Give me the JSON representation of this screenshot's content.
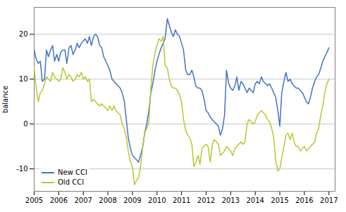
{
  "chart_data": {
    "type": "line",
    "ylabel": "balance",
    "xlim": [
      2005.0,
      2017.25
    ],
    "ylim": [
      -15,
      26
    ],
    "xticks": [
      2005,
      2006,
      2007,
      2008,
      2009,
      2010,
      2011,
      2012,
      2013,
      2014,
      2015,
      2016,
      2017
    ],
    "yticks": [
      -10,
      0,
      10,
      20
    ],
    "grid": true,
    "legend": "lower left",
    "x": [
      2005.0,
      2005.08,
      2005.17,
      2005.25,
      2005.33,
      2005.42,
      2005.5,
      2005.58,
      2005.67,
      2005.75,
      2005.83,
      2005.92,
      2006.0,
      2006.08,
      2006.17,
      2006.25,
      2006.33,
      2006.42,
      2006.5,
      2006.58,
      2006.67,
      2006.75,
      2006.83,
      2006.92,
      2007.0,
      2007.08,
      2007.17,
      2007.25,
      2007.33,
      2007.42,
      2007.5,
      2007.58,
      2007.67,
      2007.75,
      2007.83,
      2007.92,
      2008.0,
      2008.08,
      2008.17,
      2008.25,
      2008.33,
      2008.42,
      2008.5,
      2008.58,
      2008.67,
      2008.75,
      2008.83,
      2008.92,
      2009.0,
      2009.08,
      2009.17,
      2009.25,
      2009.33,
      2009.42,
      2009.5,
      2009.58,
      2009.67,
      2009.75,
      2009.83,
      2009.92,
      2010.0,
      2010.08,
      2010.17,
      2010.25,
      2010.33,
      2010.42,
      2010.5,
      2010.58,
      2010.67,
      2010.75,
      2010.83,
      2010.92,
      2011.0,
      2011.08,
      2011.17,
      2011.25,
      2011.33,
      2011.42,
      2011.5,
      2011.58,
      2011.67,
      2011.75,
      2011.83,
      2011.92,
      2012.0,
      2012.08,
      2012.17,
      2012.25,
      2012.33,
      2012.42,
      2012.5,
      2012.58,
      2012.67,
      2012.75,
      2012.83,
      2012.92,
      2013.0,
      2013.08,
      2013.17,
      2013.25,
      2013.33,
      2013.42,
      2013.5,
      2013.58,
      2013.67,
      2013.75,
      2013.83,
      2013.92,
      2014.0,
      2014.08,
      2014.17,
      2014.25,
      2014.33,
      2014.42,
      2014.5,
      2014.58,
      2014.67,
      2014.75,
      2014.83,
      2014.92,
      2015.0,
      2015.08,
      2015.17,
      2015.25,
      2015.33,
      2015.42,
      2015.5,
      2015.58,
      2015.67,
      2015.75,
      2015.83,
      2015.92,
      2016.0,
      2016.08,
      2016.17,
      2016.25,
      2016.33,
      2016.42,
      2016.5,
      2016.58,
      2016.67,
      2016.75,
      2016.83,
      2016.92,
      2017.0
    ],
    "series": [
      {
        "name": "New CCI",
        "color": "#4472c4",
        "values": [
          16.5,
          14.5,
          13.5,
          14.0,
          9.5,
          10.0,
          16.5,
          15.0,
          16.5,
          17.5,
          14.0,
          15.5,
          14.0,
          16.0,
          16.5,
          16.5,
          13.5,
          17.0,
          17.5,
          15.5,
          16.5,
          18.0,
          17.0,
          18.0,
          18.5,
          19.0,
          18.0,
          19.5,
          17.5,
          19.5,
          20.0,
          19.5,
          17.5,
          17.0,
          15.0,
          14.0,
          13.0,
          12.0,
          10.0,
          9.5,
          9.0,
          8.5,
          8.0,
          7.0,
          5.0,
          1.0,
          -3.0,
          -5.5,
          -7.0,
          -7.5,
          -8.0,
          -8.5,
          -7.0,
          -5.0,
          -2.0,
          0.0,
          3.0,
          7.0,
          9.0,
          12.0,
          14.0,
          15.5,
          17.0,
          18.0,
          19.0,
          23.5,
          22.0,
          20.5,
          19.5,
          21.0,
          20.0,
          19.5,
          18.0,
          16.5,
          12.0,
          11.0,
          11.0,
          12.0,
          10.5,
          8.5,
          8.0,
          8.0,
          7.5,
          5.5,
          3.0,
          2.5,
          1.5,
          1.0,
          0.5,
          0.0,
          -0.5,
          -2.5,
          -1.0,
          2.0,
          12.0,
          9.0,
          8.0,
          7.5,
          8.5,
          10.5,
          7.5,
          9.5,
          9.0,
          8.0,
          7.0,
          8.0,
          7.5,
          7.0,
          9.0,
          9.5,
          9.0,
          10.5,
          9.5,
          9.0,
          8.5,
          9.0,
          8.0,
          7.0,
          6.0,
          3.0,
          -0.5,
          7.0,
          9.5,
          11.5,
          9.5,
          10.0,
          9.0,
          8.5,
          8.0,
          8.0,
          7.5,
          7.0,
          6.0,
          5.0,
          4.5,
          6.0,
          8.0,
          9.5,
          10.5,
          11.0,
          12.5,
          14.0,
          15.0,
          16.0,
          17.0
        ]
      },
      {
        "name": "Old CCI",
        "color": "#b8c832",
        "values": [
          12.5,
          8.0,
          5.0,
          7.0,
          7.5,
          9.0,
          10.5,
          10.0,
          9.5,
          11.5,
          10.5,
          10.0,
          9.5,
          10.0,
          12.5,
          11.5,
          10.0,
          11.0,
          10.5,
          9.5,
          10.0,
          11.0,
          10.5,
          11.5,
          10.0,
          10.5,
          9.5,
          10.0,
          5.0,
          5.5,
          5.0,
          4.5,
          4.0,
          4.5,
          4.0,
          3.5,
          3.0,
          4.0,
          3.0,
          4.0,
          3.0,
          2.5,
          2.0,
          0.0,
          -1.0,
          -3.0,
          -6.0,
          -8.5,
          -9.5,
          -13.5,
          -12.5,
          -12.0,
          -9.5,
          -5.0,
          -2.0,
          -1.0,
          0.5,
          8.0,
          13.0,
          16.0,
          17.5,
          19.0,
          18.5,
          19.5,
          13.0,
          12.5,
          10.0,
          8.5,
          8.0,
          8.0,
          7.5,
          6.5,
          5.0,
          1.0,
          -1.5,
          -2.5,
          -3.0,
          -4.5,
          -9.5,
          -8.5,
          -7.0,
          -9.0,
          -5.5,
          -5.0,
          -4.5,
          -5.0,
          -8.5,
          -4.5,
          -3.5,
          -4.0,
          -4.5,
          -7.0,
          -6.5,
          -6.0,
          -5.0,
          -5.5,
          -6.0,
          -7.0,
          -5.5,
          -5.0,
          -4.5,
          -4.0,
          -4.5,
          -4.0,
          0.0,
          1.0,
          0.5,
          0.0,
          0.5,
          2.0,
          2.5,
          3.0,
          2.5,
          2.0,
          1.0,
          0.5,
          -1.0,
          -3.0,
          -8.0,
          -10.5,
          -10.0,
          -7.5,
          -5.0,
          -2.5,
          -2.0,
          -3.5,
          -2.0,
          -4.0,
          -5.0,
          -5.0,
          -6.0,
          -5.5,
          -5.0,
          -6.0,
          -5.5,
          -5.0,
          -4.5,
          -4.0,
          -2.0,
          -1.0,
          2.0,
          4.0,
          7.0,
          9.0,
          10.0
        ]
      }
    ]
  }
}
